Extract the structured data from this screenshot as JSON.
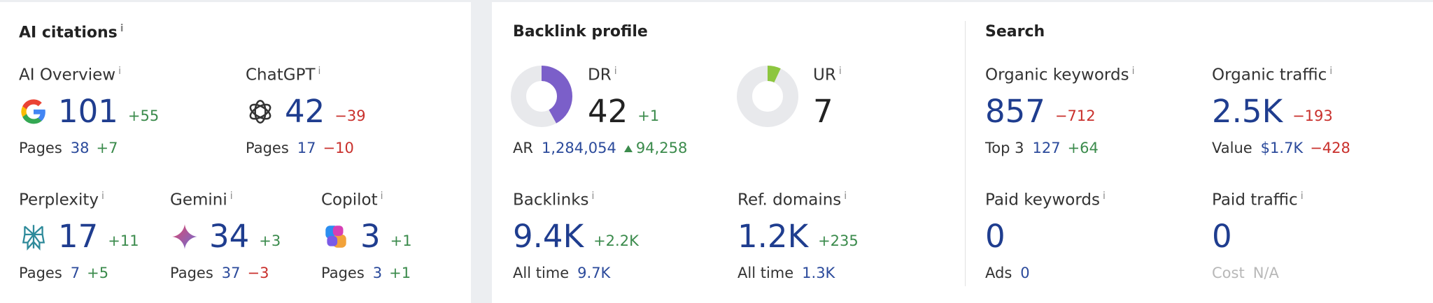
{
  "ai_citations": {
    "title": "AI citations",
    "metrics": [
      {
        "label": "AI Overview",
        "value": "101",
        "delta": "+55",
        "sub_label": "Pages",
        "sub_value": "38",
        "sub_delta": "+7"
      },
      {
        "label": "ChatGPT",
        "value": "42",
        "delta": "−39",
        "sub_label": "Pages",
        "sub_value": "17",
        "sub_delta": "−10"
      },
      {
        "label": "Perplexity",
        "value": "17",
        "delta": "+11",
        "sub_label": "Pages",
        "sub_value": "7",
        "sub_delta": "+5"
      },
      {
        "label": "Gemini",
        "value": "34",
        "delta": "+3",
        "sub_label": "Pages",
        "sub_value": "37",
        "sub_delta": "−3"
      },
      {
        "label": "Copilot",
        "value": "3",
        "delta": "+1",
        "sub_label": "Pages",
        "sub_value": "3",
        "sub_delta": "+1"
      }
    ]
  },
  "backlink_profile": {
    "title": "Backlink profile",
    "dr": {
      "label": "DR",
      "value": 42,
      "delta": "+1"
    },
    "ur": {
      "label": "UR",
      "value": 7
    },
    "ar": {
      "label": "AR",
      "value": "1,284,054",
      "delta": "94,258"
    },
    "backlinks": {
      "label": "Backlinks",
      "value": "9.4K",
      "delta": "+2.2K",
      "sub_label": "All time",
      "sub_value": "9.7K"
    },
    "ref_domains": {
      "label": "Ref. domains",
      "value": "1.2K",
      "delta": "+235",
      "sub_label": "All time",
      "sub_value": "1.3K"
    }
  },
  "search": {
    "title": "Search",
    "organic_keywords": {
      "label": "Organic keywords",
      "value": "857",
      "delta": "−712",
      "sub_label": "Top 3",
      "sub_value": "127",
      "sub_delta": "+64"
    },
    "organic_traffic": {
      "label": "Organic traffic",
      "value": "2.5K",
      "delta": "−193",
      "sub_label": "Value",
      "sub_value": "$1.7K",
      "sub_delta": "−428"
    },
    "paid_keywords": {
      "label": "Paid keywords",
      "value": "0",
      "sub_label": "Ads",
      "sub_value": "0"
    },
    "paid_traffic": {
      "label": "Paid traffic",
      "value": "0",
      "sub_label": "Cost",
      "sub_value": "N/A"
    }
  },
  "info_icon": "i"
}
